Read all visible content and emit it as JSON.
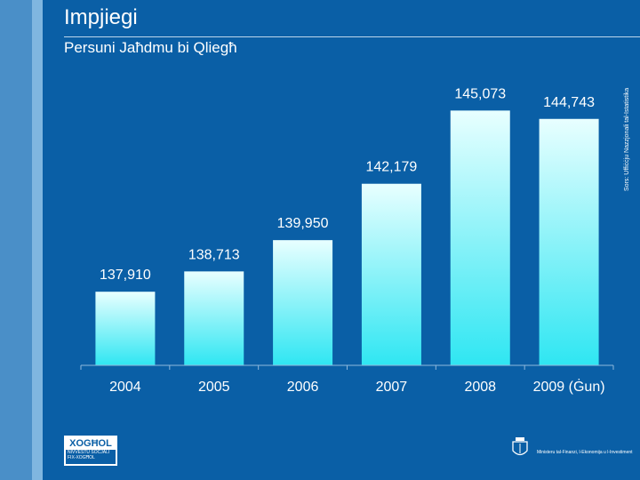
{
  "header": {
    "title": "Impjiegi",
    "subtitle": "Persuni Jaħdmu bi Qliegħ",
    "source": "Sors: Uffiċċju Nazzjonali tal-Istatistika"
  },
  "footer": {
    "logo_main": "XOGĦOL",
    "logo_line1": "NIVVESTU SOĊJALI",
    "logo_line2": "FIX-XOGĦOL",
    "ministry": "Ministeru tal-Finanzi, l-Ekonomija u l-Investiment"
  },
  "colors": {
    "background": "#0a5fa6",
    "bar_top": "#e8ffff",
    "bar_bottom": "#2fe6f2",
    "text": "#ffffff"
  },
  "chart_data": {
    "type": "bar",
    "title": "Persuni Jaħdmu bi Qliegħ",
    "categories": [
      "2004",
      "2005",
      "2006",
      "2007",
      "2008",
      "2009 (Ġun)"
    ],
    "values": [
      137910,
      138713,
      139950,
      142179,
      145073,
      144743
    ],
    "value_labels": [
      "137,910",
      "138,713",
      "139,950",
      "142,179",
      "145,073",
      "144,743"
    ],
    "xlabel": "",
    "ylabel": "",
    "ylim": [
      135000,
      146000
    ],
    "grid": false,
    "legend": "none"
  }
}
